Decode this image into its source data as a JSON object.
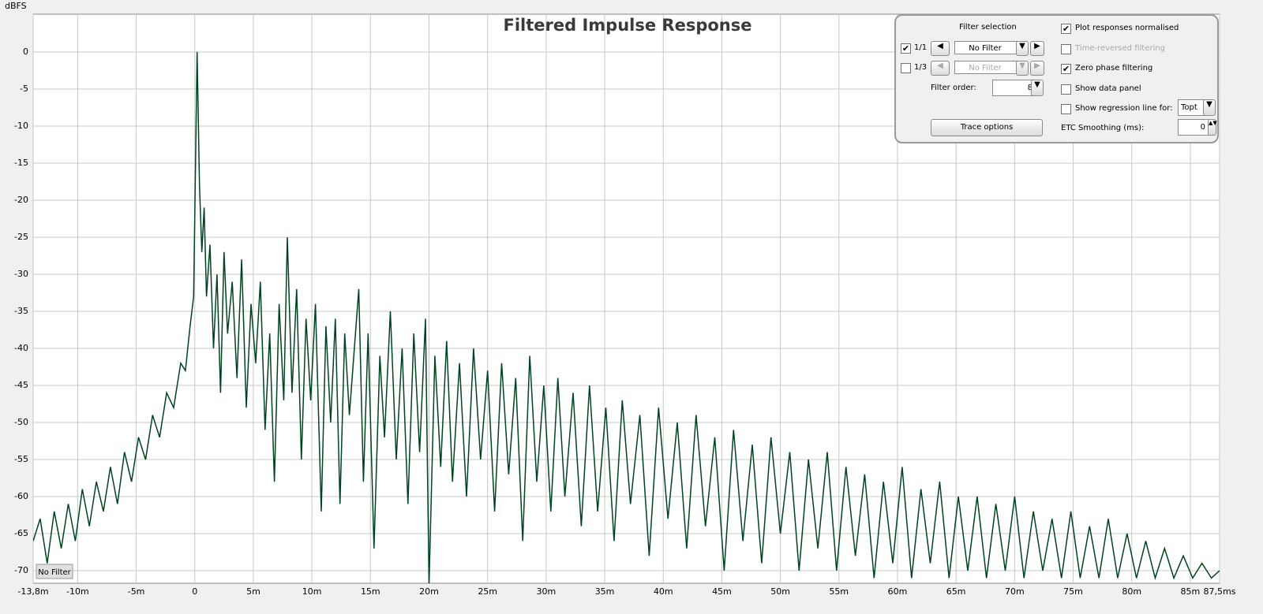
{
  "chart_data": {
    "type": "line",
    "title": "Filtered Impulse Response",
    "y_label": "dBFS",
    "x": [
      -13.8,
      -13.2,
      -12.6,
      -12.0,
      -11.4,
      -10.8,
      -10.2,
      -9.6,
      -9.0,
      -8.4,
      -7.8,
      -7.2,
      -6.6,
      -6.0,
      -5.4,
      -4.8,
      -4.2,
      -3.6,
      -3.0,
      -2.4,
      -1.8,
      -1.2,
      -0.8,
      -0.4,
      -0.1,
      0.2,
      0.4,
      0.6,
      0.8,
      1.0,
      1.3,
      1.6,
      1.9,
      2.2,
      2.5,
      2.8,
      3.2,
      3.6,
      4.0,
      4.4,
      4.8,
      5.2,
      5.6,
      6.0,
      6.4,
      6.8,
      7.2,
      7.6,
      7.9,
      8.3,
      8.7,
      9.1,
      9.5,
      9.9,
      10.3,
      10.8,
      11.2,
      11.6,
      12.0,
      12.4,
      12.8,
      13.2,
      14.0,
      14.4,
      14.8,
      15.3,
      15.8,
      16.2,
      16.7,
      17.2,
      17.7,
      18.2,
      18.7,
      19.2,
      19.7,
      20.0,
      20.5,
      21.0,
      21.5,
      22.0,
      22.6,
      23.2,
      23.8,
      24.4,
      25.0,
      25.6,
      26.2,
      26.8,
      27.4,
      28.0,
      28.6,
      29.2,
      29.8,
      30.4,
      31.0,
      31.6,
      32.3,
      33.0,
      33.7,
      34.4,
      35.1,
      35.8,
      36.5,
      37.2,
      38.0,
      38.8,
      39.6,
      40.4,
      41.2,
      42.0,
      42.8,
      43.6,
      44.4,
      45.2,
      46.0,
      46.8,
      47.6,
      48.4,
      49.2,
      50.0,
      50.8,
      51.6,
      52.4,
      53.2,
      54.0,
      54.8,
      55.6,
      56.4,
      57.2,
      58.0,
      58.8,
      59.6,
      60.4,
      61.2,
      62.0,
      62.8,
      63.6,
      64.4,
      65.2,
      66.0,
      66.8,
      67.6,
      68.4,
      69.2,
      70.0,
      70.8,
      71.6,
      72.4,
      73.2,
      74.0,
      74.8,
      75.6,
      76.4,
      77.2,
      78.0,
      78.8,
      79.6,
      80.4,
      81.2,
      82.0,
      82.8,
      83.6,
      84.4,
      85.2,
      86.0,
      86.8,
      87.5
    ],
    "series": [
      {
        "name": "No Filter",
        "color": "#00441f",
        "values": [
          -66,
          -63,
          -69,
          -62,
          -67,
          -61,
          -66,
          -59,
          -64,
          -58,
          -62,
          -56,
          -61,
          -54,
          -58,
          -52,
          -55,
          -49,
          -52,
          -46,
          -48,
          -42,
          -43,
          -37,
          -33,
          0,
          -18,
          -27,
          -21,
          -33,
          -26,
          -40,
          -30,
          -46,
          -27,
          -38,
          -31,
          -44,
          -28,
          -48,
          -34,
          -42,
          -31,
          -51,
          -38,
          -58,
          -34,
          -47,
          -25,
          -46,
          -32,
          -55,
          -36,
          -47,
          -34,
          -62,
          -37,
          -50,
          -36,
          -61,
          -38,
          -49,
          -32,
          -58,
          -38,
          -67,
          -41,
          -52,
          -35,
          -55,
          -40,
          -61,
          -38,
          -54,
          -36,
          -72,
          -41,
          -56,
          -39,
          -58,
          -42,
          -60,
          -40,
          -55,
          -43,
          -62,
          -42,
          -57,
          -44,
          -66,
          -41,
          -58,
          -45,
          -62,
          -44,
          -60,
          -46,
          -64,
          -45,
          -62,
          -48,
          -66,
          -47,
          -61,
          -49,
          -68,
          -48,
          -63,
          -50,
          -67,
          -49,
          -64,
          -52,
          -70,
          -51,
          -66,
          -53,
          -69,
          -52,
          -65,
          -54,
          -70,
          -55,
          -67,
          -54,
          -70,
          -56,
          -68,
          -57,
          -71,
          -58,
          -69,
          -56,
          -71,
          -59,
          -69,
          -58,
          -71,
          -60,
          -70,
          -60,
          -71,
          -61,
          -70,
          -60,
          -71,
          -62,
          -70,
          -63,
          -71,
          -62,
          -71,
          -64,
          -71,
          -63,
          -71,
          -65,
          -71,
          -66,
          -71,
          -67,
          -71,
          -68,
          -71,
          -69,
          -71,
          -70
        ]
      }
    ],
    "xlim": [
      -13.8,
      87.5
    ],
    "ylim": [
      -71.7,
      5.1
    ],
    "xticks": [
      {
        "value": -13.8,
        "label": "-13,8m"
      },
      {
        "value": -10,
        "label": "-10m"
      },
      {
        "value": -5,
        "label": "-5m"
      },
      {
        "value": 0,
        "label": "0"
      },
      {
        "value": 5,
        "label": "5m"
      },
      {
        "value": 10,
        "label": "10m"
      },
      {
        "value": 15,
        "label": "15m"
      },
      {
        "value": 20,
        "label": "20m"
      },
      {
        "value": 25,
        "label": "25m"
      },
      {
        "value": 30,
        "label": "30m"
      },
      {
        "value": 35,
        "label": "35m"
      },
      {
        "value": 40,
        "label": "40m"
      },
      {
        "value": 45,
        "label": "45m"
      },
      {
        "value": 50,
        "label": "50m"
      },
      {
        "value": 55,
        "label": "55m"
      },
      {
        "value": 60,
        "label": "60m"
      },
      {
        "value": 65,
        "label": "65m"
      },
      {
        "value": 70,
        "label": "70m"
      },
      {
        "value": 75,
        "label": "75m"
      },
      {
        "value": 80,
        "label": "80m"
      },
      {
        "value": 85,
        "label": "85m"
      },
      {
        "value": 87.5,
        "label": "87,5ms"
      }
    ],
    "yticks": [
      0,
      -5,
      -10,
      -15,
      -20,
      -25,
      -30,
      -35,
      -40,
      -45,
      -50,
      -55,
      -60,
      -65,
      -70
    ],
    "grid": true
  },
  "panel": {
    "filter_selection": "Filter selection",
    "rows": [
      {
        "checked": true,
        "label": "1/1",
        "filter": "No Filter",
        "disabled": false
      },
      {
        "checked": false,
        "label": "1/3",
        "filter": "No Filter",
        "disabled": true
      }
    ],
    "filter_order_label": "Filter order:",
    "filter_order": 8,
    "trace_options": "Trace options",
    "options": [
      {
        "label": "Plot responses normalised",
        "checked": true,
        "disabled": false
      },
      {
        "label": "Time-reversed filtering",
        "checked": false,
        "disabled": true
      },
      {
        "label": "Zero phase filtering",
        "checked": true,
        "disabled": false
      },
      {
        "label": "Show data panel",
        "checked": false,
        "disabled": false
      },
      {
        "label": "Show regression line for:",
        "checked": false,
        "disabled": false
      }
    ],
    "regression_for": "Topt",
    "etc_smoothing_label": "ETC Smoothing (ms):",
    "etc_smoothing": 0
  }
}
